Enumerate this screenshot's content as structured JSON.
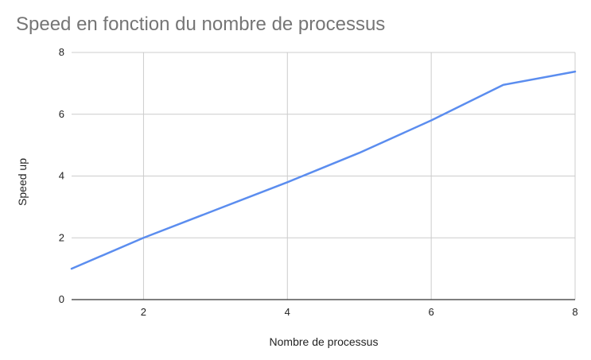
{
  "chart_data": {
    "type": "line",
    "title": "Speed en fonction du nombre de processus",
    "xlabel": "Nombre de processus",
    "ylabel": "Speed up",
    "x": [
      1,
      2,
      3,
      4,
      5,
      6,
      7,
      8
    ],
    "series": [
      {
        "values": [
          1.0,
          2.0,
          2.9,
          3.8,
          4.75,
          5.8,
          6.95,
          7.38
        ]
      }
    ],
    "xlim": [
      1,
      8
    ],
    "ylim": [
      0,
      8
    ],
    "xticks": [
      "2",
      "4",
      "6",
      "8"
    ],
    "yticks": [
      "0",
      "2",
      "4",
      "6",
      "8"
    ],
    "grid": true,
    "legend": "none",
    "colors": {
      "series": "#5b8def",
      "grid": "#cccccc",
      "axis": "#333333",
      "title": "#757575"
    }
  }
}
